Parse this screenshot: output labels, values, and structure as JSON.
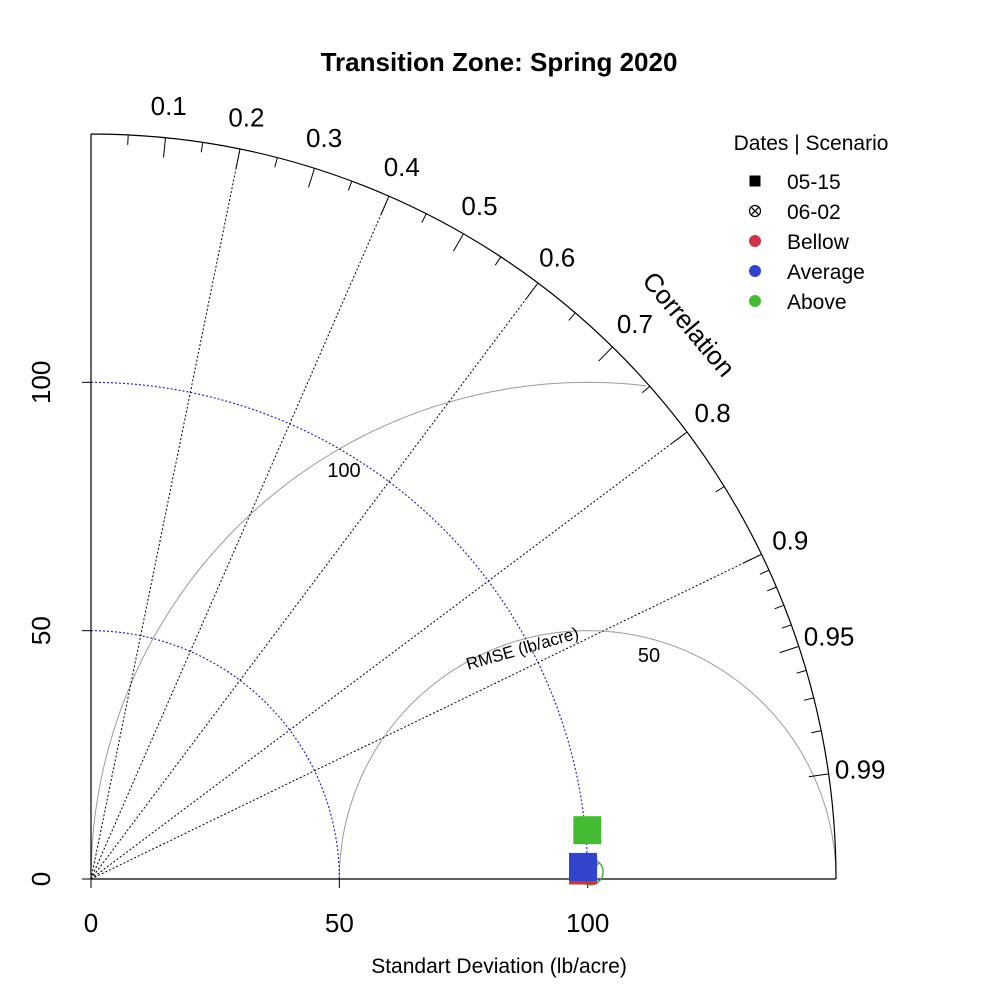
{
  "chart_data": {
    "type": "scatter",
    "subtype": "taylor-diagram",
    "title": "Transition Zone: Spring 2020",
    "xlabel": "Standart Deviation (lb/acre)",
    "ylabel": "",
    "sd_max": 150,
    "sd_ticks": [
      "0",
      "50",
      "100"
    ],
    "sd_tick_values": [
      0,
      50,
      100
    ],
    "correlation_label": "Correlation",
    "correlation_major": [
      {
        "value": 0.1,
        "label": "0.1"
      },
      {
        "value": 0.2,
        "label": "0.2"
      },
      {
        "value": 0.3,
        "label": "0.3"
      },
      {
        "value": 0.4,
        "label": "0.4"
      },
      {
        "value": 0.5,
        "label": "0.5"
      },
      {
        "value": 0.6,
        "label": "0.6"
      },
      {
        "value": 0.7,
        "label": "0.7"
      },
      {
        "value": 0.8,
        "label": "0.8"
      },
      {
        "value": 0.9,
        "label": "0.9"
      },
      {
        "value": 0.95,
        "label": "0.95"
      },
      {
        "value": 0.99,
        "label": "0.99"
      }
    ],
    "correlation_lines": [
      0.2,
      0.4,
      0.6,
      0.8,
      0.9
    ],
    "correlation_minor": [
      0.05,
      0.15,
      0.25,
      0.35,
      0.45,
      0.55,
      0.65,
      0.75,
      0.85,
      0.91,
      0.92,
      0.93,
      0.94,
      0.96,
      0.97,
      0.98
    ],
    "sd_arcs": [
      50,
      100
    ],
    "reference_sd": 100,
    "rmse_label": "RMSE (lb/acre)",
    "rmse_arcs": [
      {
        "value": 50,
        "label": "50"
      },
      {
        "value": 100,
        "label": "100"
      }
    ],
    "legend_title": "Dates | Scenario",
    "legend_placement": "top-right",
    "legend": [
      {
        "label": "05-15",
        "symbol": "square",
        "color": "#000000"
      },
      {
        "label": "06-02",
        "symbol": "crossed-circle",
        "color": "#000000"
      },
      {
        "label": "Bellow",
        "symbol": "dot",
        "color": "#cc3344"
      },
      {
        "label": "Average",
        "symbol": "dot",
        "color": "#3344cc"
      },
      {
        "label": "Above",
        "symbol": "dot",
        "color": "#44bb33"
      }
    ],
    "points": [
      {
        "date": "06-02",
        "scenario": "Bellow",
        "sd": 100.5,
        "correlation": 0.9999,
        "symbol": "crossed-circle",
        "color": "#cc3344"
      },
      {
        "date": "06-02",
        "scenario": "Average",
        "sd": 100.5,
        "correlation": 0.9999,
        "symbol": "crossed-circle",
        "color": "#3344cc"
      },
      {
        "date": "06-02",
        "scenario": "Above",
        "sd": 100.5,
        "correlation": 0.9999,
        "symbol": "crossed-circle",
        "color": "#44bb33"
      },
      {
        "date": "05-15",
        "scenario": "Bellow",
        "sd": 99.1,
        "correlation": 0.99985,
        "symbol": "square",
        "color": "#cc3344"
      },
      {
        "date": "05-15",
        "scenario": "Average",
        "sd": 99.1,
        "correlation": 0.9997,
        "symbol": "square",
        "color": "#3344cc"
      },
      {
        "date": "05-15",
        "scenario": "Above",
        "sd": 100.4,
        "correlation": 0.9952,
        "symbol": "square",
        "color": "#44bb33"
      }
    ]
  }
}
